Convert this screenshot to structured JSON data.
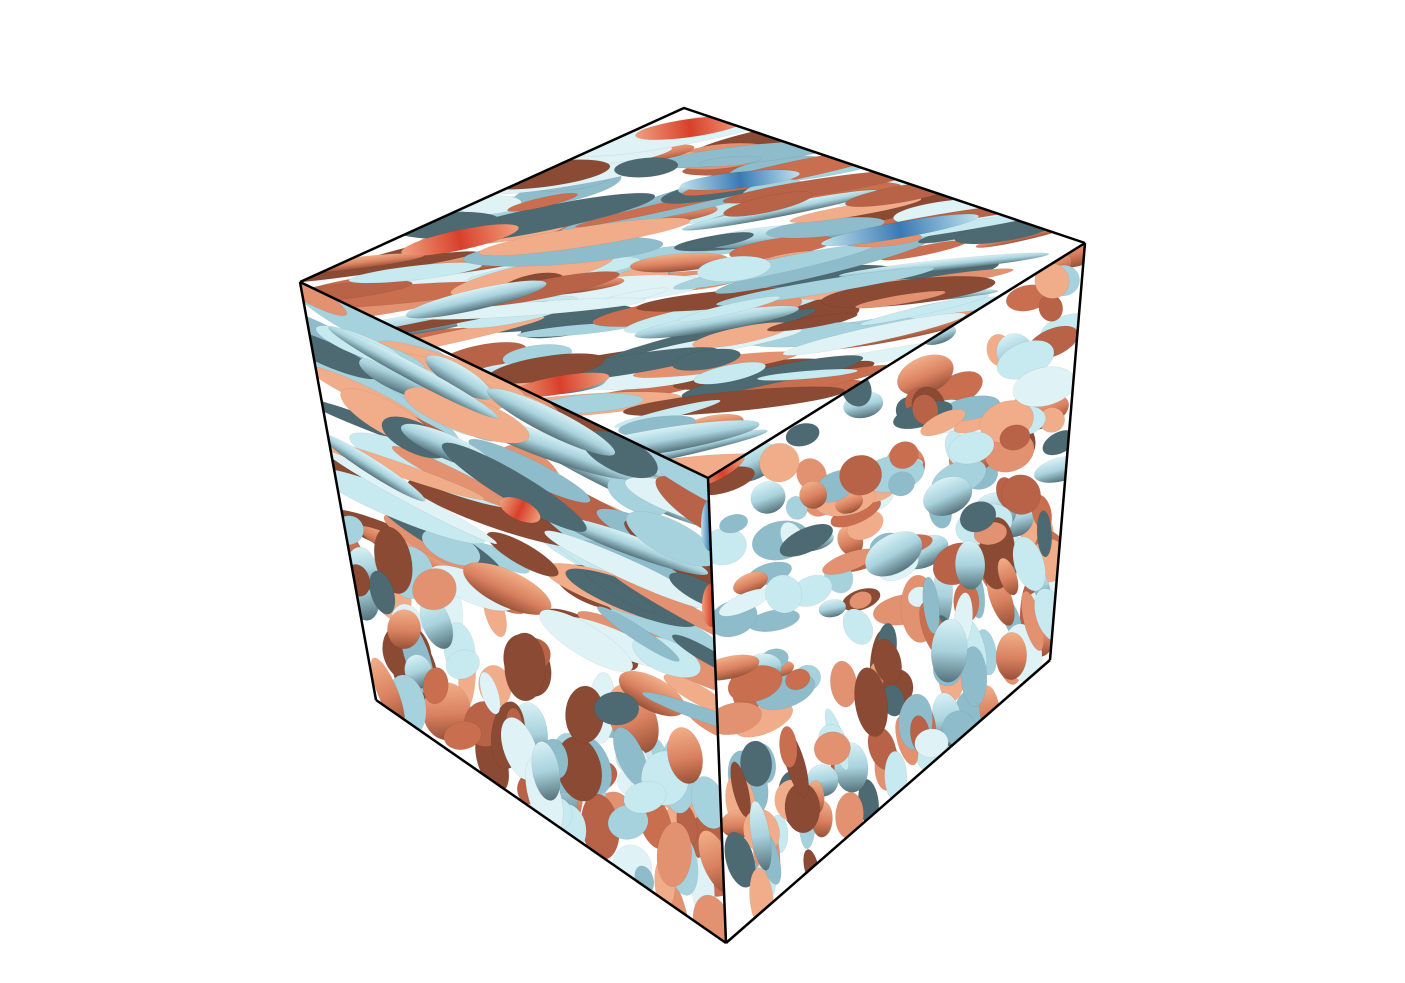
{
  "scene": {
    "subject": "3d-isosurface-cube",
    "colors": {
      "background": "#ffffff",
      "edge": "#000000",
      "warm_light": "#f0a77f",
      "warm_mid": "#d97752",
      "warm_dark": "#8a4a33",
      "warm_peak": "#d8402b",
      "cool_light": "#c7eaf0",
      "cool_mid": "#9ccbd8",
      "cool_dark": "#3f5962",
      "cool_peak": "#3a79b3"
    }
  }
}
